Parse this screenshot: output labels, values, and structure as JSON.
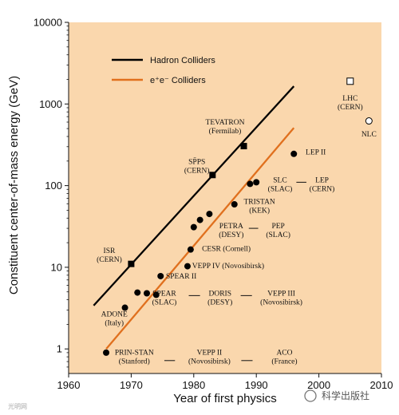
{
  "colors": {
    "plot_background": "#FAD7AD",
    "hadron": "#000000",
    "ee": "#E0701E",
    "marker": "#000000"
  },
  "watermark": {
    "text": "科学出版社",
    "small_text": "光明网"
  },
  "chart_data": {
    "type": "scatter",
    "xlabel": "Year of first physics",
    "ylabel": "Constituent center-of-mass energy (GeV)",
    "xlim": [
      1960,
      2010
    ],
    "ylim": [
      0.5,
      10000
    ],
    "yscale": "log",
    "xticks": [
      1960,
      1970,
      1980,
      1990,
      2000,
      2010
    ],
    "yticks": [
      1,
      10,
      100,
      1000,
      10000
    ],
    "legend": {
      "placement": "top-left",
      "entries": [
        {
          "label": "Hadron Colliders",
          "color": "#000000"
        },
        {
          "label": "e⁺e⁻ Colliders",
          "color": "#E0701E"
        }
      ]
    },
    "series": [
      {
        "name": "Hadron Colliders",
        "type": "line",
        "color": "#000000",
        "x": [
          1964,
          1996
        ],
        "y": [
          3.4,
          1650
        ]
      },
      {
        "name": "e⁺e⁻ Colliders",
        "type": "line",
        "color": "#E0701E",
        "x": [
          1966,
          1996
        ],
        "y": [
          1.0,
          510
        ]
      }
    ],
    "points": [
      {
        "x": 1970,
        "y": 11,
        "marker": "square"
      },
      {
        "x": 1983,
        "y": 135,
        "marker": "square"
      },
      {
        "x": 1988,
        "y": 305,
        "marker": "square"
      },
      {
        "x": 2005,
        "y": 1900,
        "marker": "open-square"
      },
      {
        "x": 2008,
        "y": 620,
        "marker": "open-circle"
      },
      {
        "x": 1966,
        "y": 0.9,
        "marker": "circle"
      },
      {
        "x": 1969,
        "y": 3.2,
        "marker": "circle"
      },
      {
        "x": 1971,
        "y": 4.9,
        "marker": "circle"
      },
      {
        "x": 1972.5,
        "y": 4.8,
        "marker": "circle"
      },
      {
        "x": 1974,
        "y": 4.6,
        "marker": "circle"
      },
      {
        "x": 1974.7,
        "y": 7.8,
        "marker": "circle"
      },
      {
        "x": 1979,
        "y": 10.3,
        "marker": "circle"
      },
      {
        "x": 1979.5,
        "y": 16.5,
        "marker": "circle"
      },
      {
        "x": 1980,
        "y": 31,
        "marker": "circle"
      },
      {
        "x": 1981,
        "y": 38,
        "marker": "circle"
      },
      {
        "x": 1982.5,
        "y": 45,
        "marker": "circle"
      },
      {
        "x": 1986.5,
        "y": 59,
        "marker": "circle"
      },
      {
        "x": 1989,
        "y": 105,
        "marker": "circle"
      },
      {
        "x": 1990,
        "y": 110,
        "marker": "circle"
      },
      {
        "x": 1996,
        "y": 245,
        "marker": "circle"
      }
    ],
    "annotations": [
      {
        "lines": [
          "ISR",
          "(CERN)"
        ],
        "x": 1966.5,
        "y": 15
      },
      {
        "lines": [
          "SP̄PS",
          "(CERN)"
        ],
        "x": 1980.5,
        "y": 185
      },
      {
        "lines": [
          "TEVATRON",
          "(Fermilab)"
        ],
        "x": 1985,
        "y": 560
      },
      {
        "lines": [
          "LHC",
          "(CERN)"
        ],
        "x": 2005,
        "y": 1100
      },
      {
        "lines": [
          "NLC"
        ],
        "x": 2008,
        "y": 400
      },
      {
        "lines": [
          "LEP II"
        ],
        "x": 1999.5,
        "y": 240
      },
      {
        "lines": [
          "SLC",
          "(SLAC)"
        ],
        "x": 1993.8,
        "y": 110
      },
      {
        "lines": [
          "LEP",
          "(CERN)"
        ],
        "x": 2000.5,
        "y": 110
      },
      {
        "lines": [
          "TRISTAN",
          "(KEK)"
        ],
        "x": 1990.5,
        "y": 60
      },
      {
        "lines": [
          "PETRA",
          "(DESY)"
        ],
        "x": 1986,
        "y": 30
      },
      {
        "lines": [
          "PEP",
          "(SLAC)"
        ],
        "x": 1993.5,
        "y": 30
      },
      {
        "lines": [
          "CESR (Cornell)"
        ],
        "x": 1985.2,
        "y": 15.8
      },
      {
        "lines": [
          "VEPP IV (Novosibirsk)"
        ],
        "x": 1985.5,
        "y": 9.8
      },
      {
        "lines": [
          "SPEAR II"
        ],
        "x": 1978,
        "y": 7.3
      },
      {
        "lines": [
          "SPEAR",
          "(SLAC)"
        ],
        "x": 1975.3,
        "y": 4.5
      },
      {
        "lines": [
          "DORIS",
          "(DESY)"
        ],
        "x": 1984.2,
        "y": 4.5
      },
      {
        "lines": [
          "VEPP III",
          "(Novosibirsk)"
        ],
        "x": 1994,
        "y": 4.5
      },
      {
        "lines": [
          "ADONE",
          "(Italy)"
        ],
        "x": 1967.3,
        "y": 2.5
      },
      {
        "lines": [
          "PRIN-STAN",
          "(Stanford)"
        ],
        "x": 1970.5,
        "y": 0.85
      },
      {
        "lines": [
          "VEPP II",
          "(Novosibirsk)"
        ],
        "x": 1982.5,
        "y": 0.85
      },
      {
        "lines": [
          "ACO",
          "(France)"
        ],
        "x": 1994.5,
        "y": 0.85
      }
    ],
    "dashes": [
      {
        "x1": 1988.8,
        "x2": 1990.3,
        "y": 30
      },
      {
        "x1": 1996.4,
        "x2": 1998,
        "y": 110
      },
      {
        "x1": 1979.2,
        "x2": 1981,
        "y": 4.5
      },
      {
        "x1": 1987.5,
        "x2": 1989.3,
        "y": 4.5
      },
      {
        "x1": 1975.3,
        "x2": 1977.0,
        "y": 0.72
      },
      {
        "x1": 1987.6,
        "x2": 1989.4,
        "y": 0.72
      }
    ]
  }
}
